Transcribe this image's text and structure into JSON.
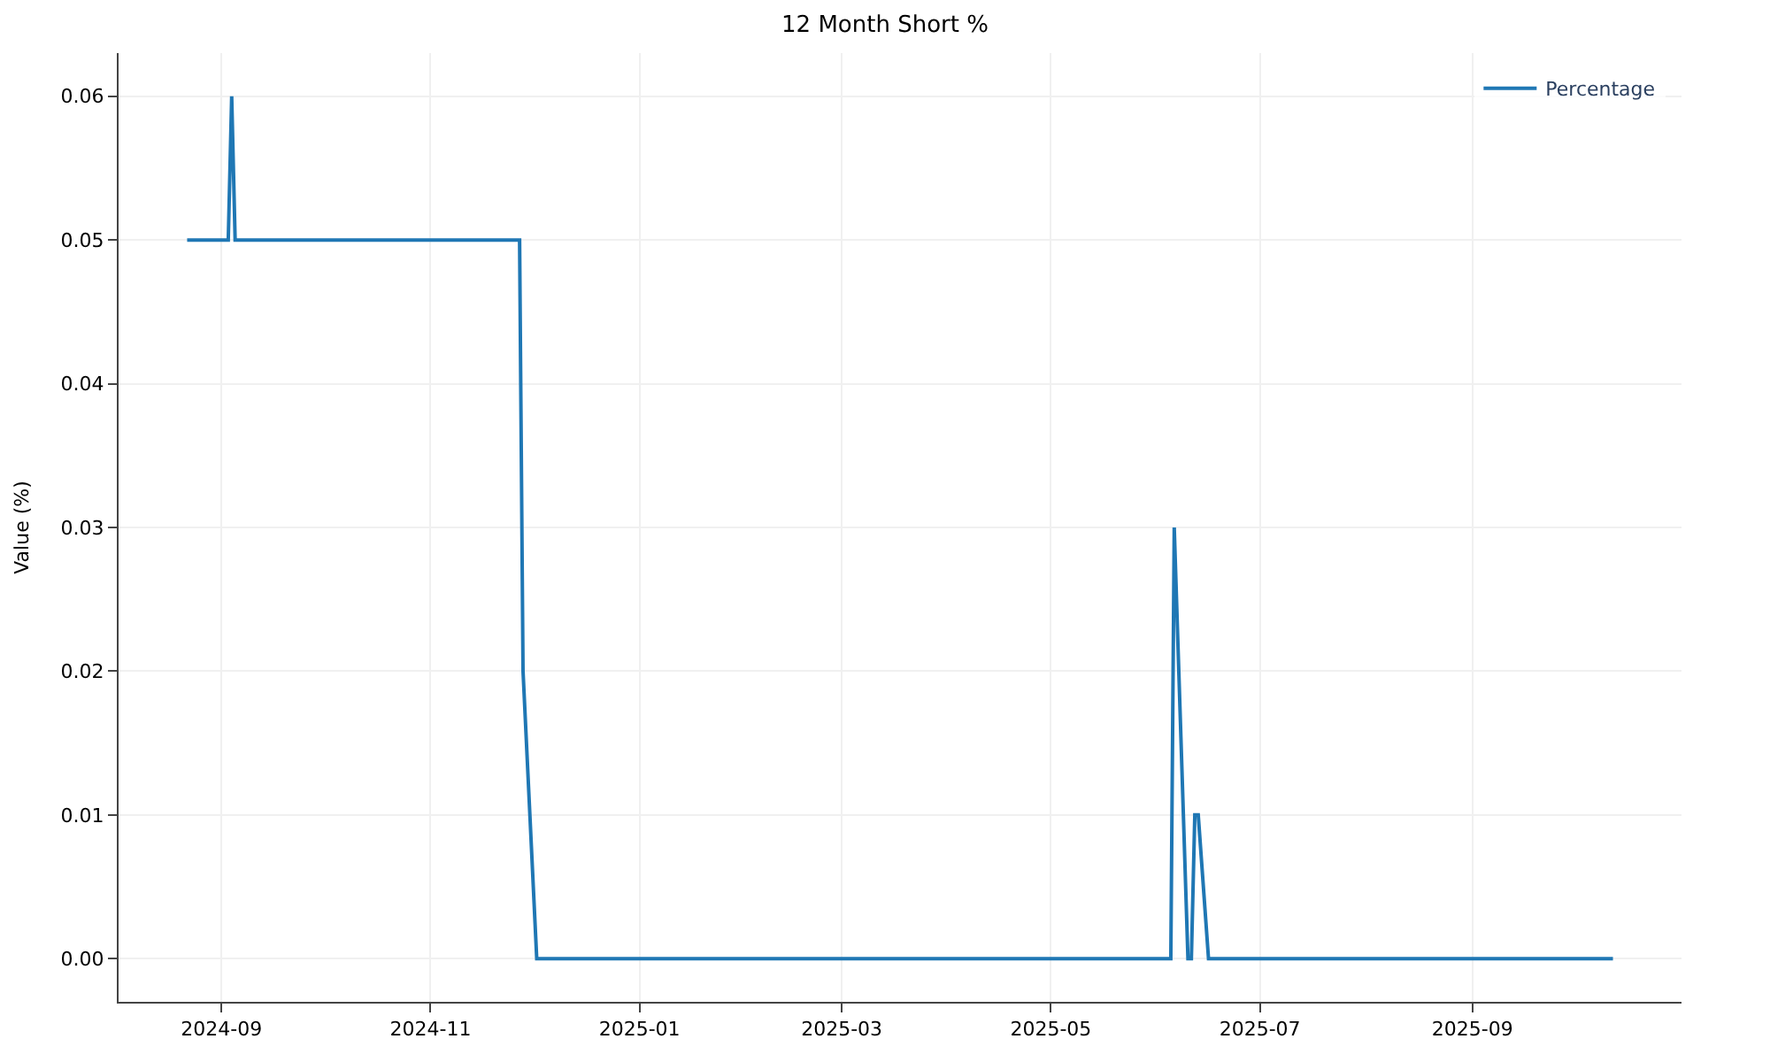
{
  "chart_data": {
    "type": "line",
    "title": "12 Month Short %",
    "ylabel": "Value (%)",
    "x": [
      "2024-08-22",
      "2024-09-03",
      "2024-09-04",
      "2024-09-05",
      "2024-11-27",
      "2024-11-28",
      "2024-12-02",
      "2025-06-05",
      "2025-06-06",
      "2025-06-10",
      "2025-06-11",
      "2025-06-12",
      "2025-06-13",
      "2025-06-16",
      "2025-10-12"
    ],
    "series": [
      {
        "name": "Percentage",
        "color": "#1f77b4",
        "values": [
          0.05,
          0.05,
          0.06,
          0.05,
          0.05,
          0.02,
          0.0,
          0.0,
          0.03,
          0.0,
          0.0,
          0.01,
          0.01,
          0.0,
          0.0
        ]
      }
    ],
    "xlim": [
      "2024-08-02",
      "2025-11-01"
    ],
    "xticks": [
      {
        "value": "2024-09-01",
        "label": "2024-09"
      },
      {
        "value": "2024-11-01",
        "label": "2024-11"
      },
      {
        "value": "2025-01-01",
        "label": "2025-01"
      },
      {
        "value": "2025-03-01",
        "label": "2025-03"
      },
      {
        "value": "2025-05-01",
        "label": "2025-05"
      },
      {
        "value": "2025-07-01",
        "label": "2025-07"
      },
      {
        "value": "2025-09-01",
        "label": "2025-09"
      }
    ],
    "ylim": [
      -0.003,
      0.063
    ],
    "yticks": [
      {
        "value": 0,
        "label": "0.00"
      },
      {
        "value": 0.01,
        "label": "0.01"
      },
      {
        "value": 0.02,
        "label": "0.02"
      },
      {
        "value": 0.03,
        "label": "0.03"
      },
      {
        "value": 0.04,
        "label": "0.04"
      },
      {
        "value": 0.05,
        "label": "0.05"
      },
      {
        "value": 0.06,
        "label": "0.06"
      }
    ],
    "grid": true,
    "legend": "top right",
    "marker": "none",
    "line_style": "solid"
  }
}
